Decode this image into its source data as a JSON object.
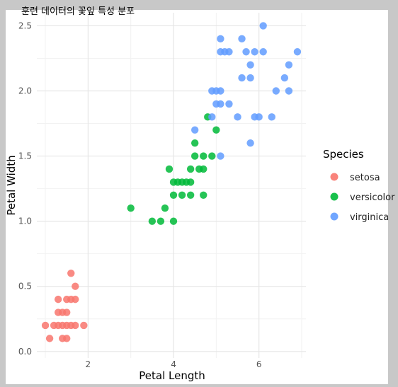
{
  "chart_data": {
    "type": "scatter",
    "title": "훈련 데이터의 꽃잎 특성 분포",
    "xlabel": "Petal Length",
    "ylabel": "Petal Width",
    "xlim": [
      0.8,
      7.1
    ],
    "ylim": [
      -0.05,
      2.6
    ],
    "x_ticks": [
      2,
      4,
      6
    ],
    "y_ticks": [
      0.0,
      0.5,
      1.0,
      1.5,
      2.0,
      2.5
    ],
    "y_tick_labels": [
      "0.0",
      "0.5",
      "1.0",
      "1.5",
      "2.0",
      "2.5"
    ],
    "grid": true,
    "legend_title": "Species",
    "legend_position": "right",
    "series": [
      {
        "name": "setosa",
        "color": "#f8766d",
        "points": [
          [
            1.0,
            0.2
          ],
          [
            1.1,
            0.1
          ],
          [
            1.2,
            0.2
          ],
          [
            1.3,
            0.2
          ],
          [
            1.4,
            0.2
          ],
          [
            1.5,
            0.2
          ],
          [
            1.6,
            0.2
          ],
          [
            1.7,
            0.2
          ],
          [
            1.9,
            0.2
          ],
          [
            1.3,
            0.3
          ],
          [
            1.4,
            0.3
          ],
          [
            1.5,
            0.3
          ],
          [
            1.3,
            0.4
          ],
          [
            1.5,
            0.4
          ],
          [
            1.6,
            0.4
          ],
          [
            1.7,
            0.4
          ],
          [
            1.4,
            0.1
          ],
          [
            1.5,
            0.1
          ],
          [
            1.7,
            0.5
          ],
          [
            1.6,
            0.6
          ]
        ]
      },
      {
        "name": "versicolor",
        "color": "#00ba38",
        "points": [
          [
            3.0,
            1.1
          ],
          [
            3.5,
            1.0
          ],
          [
            3.7,
            1.0
          ],
          [
            3.8,
            1.1
          ],
          [
            3.9,
            1.4
          ],
          [
            4.0,
            1.0
          ],
          [
            4.0,
            1.3
          ],
          [
            4.1,
            1.3
          ],
          [
            4.2,
            1.3
          ],
          [
            4.3,
            1.3
          ],
          [
            4.4,
            1.3
          ],
          [
            4.0,
            1.2
          ],
          [
            4.2,
            1.2
          ],
          [
            4.4,
            1.2
          ],
          [
            4.4,
            1.4
          ],
          [
            4.6,
            1.4
          ],
          [
            4.7,
            1.4
          ],
          [
            4.5,
            1.5
          ],
          [
            4.7,
            1.5
          ],
          [
            4.9,
            1.5
          ],
          [
            4.5,
            1.6
          ],
          [
            4.8,
            1.8
          ],
          [
            5.0,
            1.7
          ],
          [
            4.7,
            1.2
          ]
        ]
      },
      {
        "name": "virginica",
        "color": "#619cff",
        "points": [
          [
            4.5,
            1.7
          ],
          [
            4.9,
            1.8
          ],
          [
            5.1,
            1.5
          ],
          [
            5.8,
            1.6
          ],
          [
            4.9,
            2.0
          ],
          [
            5.0,
            2.0
          ],
          [
            5.1,
            2.0
          ],
          [
            5.0,
            1.9
          ],
          [
            5.1,
            1.9
          ],
          [
            5.3,
            1.9
          ],
          [
            5.2,
            2.3
          ],
          [
            5.1,
            2.3
          ],
          [
            5.3,
            2.3
          ],
          [
            5.1,
            2.4
          ],
          [
            5.6,
            2.4
          ],
          [
            5.7,
            2.3
          ],
          [
            5.9,
            2.3
          ],
          [
            6.1,
            2.3
          ],
          [
            6.9,
            2.3
          ],
          [
            6.1,
            2.5
          ],
          [
            5.5,
            1.8
          ],
          [
            5.9,
            1.8
          ],
          [
            6.0,
            1.8
          ],
          [
            6.3,
            1.8
          ],
          [
            5.6,
            2.1
          ],
          [
            5.8,
            2.1
          ],
          [
            6.4,
            2.0
          ],
          [
            6.7,
            2.0
          ],
          [
            6.6,
            2.1
          ],
          [
            6.7,
            2.2
          ],
          [
            5.8,
            2.2
          ]
        ]
      }
    ]
  }
}
